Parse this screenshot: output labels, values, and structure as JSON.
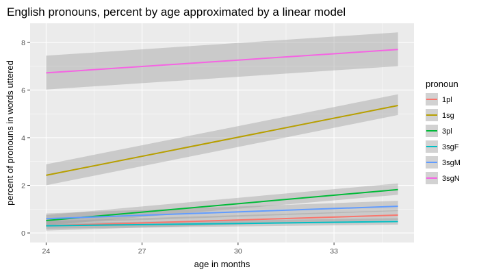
{
  "chart_data": {
    "type": "line",
    "title": "English pronouns, percent by age approximated by a linear model",
    "xlabel": "age in months",
    "ylabel": "percent of pronouns in words uttered",
    "xlim": [
      23.5,
      35.5
    ],
    "ylim": [
      -0.4,
      8.8
    ],
    "x_ticks": [
      24,
      27,
      30,
      33
    ],
    "y_ticks": [
      0,
      2,
      4,
      6,
      8
    ],
    "grid": true,
    "confidence_band": true,
    "legend": {
      "title": "pronoun",
      "placement": "right"
    },
    "series": [
      {
        "name": "1pl",
        "color": "#F8766D",
        "x": [
          24,
          35
        ],
        "y": [
          0.3,
          0.75
        ],
        "ci_low": [
          0.1,
          0.55
        ],
        "ci_high": [
          0.5,
          0.95
        ]
      },
      {
        "name": "1sg",
        "color": "#B79F00",
        "x": [
          24,
          35
        ],
        "y": [
          2.42,
          5.35
        ],
        "ci_low": [
          2.0,
          4.95
        ],
        "ci_high": [
          2.88,
          5.82
        ]
      },
      {
        "name": "3pl",
        "color": "#00BA38",
        "x": [
          24,
          35
        ],
        "y": [
          0.52,
          1.82
        ],
        "ci_low": [
          0.32,
          1.6
        ],
        "ci_high": [
          0.75,
          2.08
        ]
      },
      {
        "name": "3sgF",
        "color": "#00BFC4",
        "x": [
          24,
          35
        ],
        "y": [
          0.3,
          0.48
        ],
        "ci_low": [
          0.18,
          0.35
        ],
        "ci_high": [
          0.42,
          0.62
        ]
      },
      {
        "name": "3sgM",
        "color": "#619CFF",
        "x": [
          24,
          35
        ],
        "y": [
          0.6,
          1.12
        ],
        "ci_low": [
          0.4,
          0.92
        ],
        "ci_high": [
          0.82,
          1.35
        ]
      },
      {
        "name": "3sgN",
        "color": "#F564E3",
        "x": [
          24,
          35
        ],
        "y": [
          6.72,
          7.7
        ],
        "ci_low": [
          6.02,
          7.0
        ],
        "ci_high": [
          7.44,
          8.42
        ]
      }
    ]
  }
}
